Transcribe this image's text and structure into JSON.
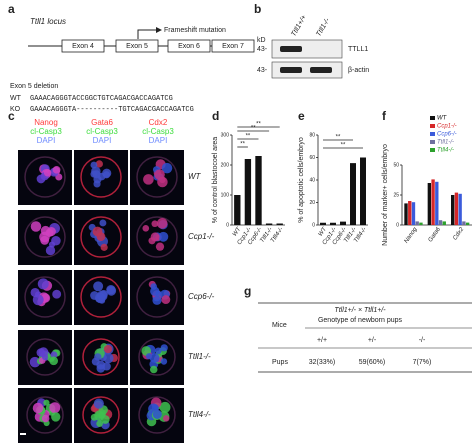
{
  "panels": {
    "a": {
      "label": "a",
      "locus": "Ttll1 locus",
      "exons": [
        "Exon 4",
        "Exon 5",
        "Exon 6",
        "Exon 7"
      ],
      "mutation": "Frameshift mutation",
      "deletion": "Exon 5 deletion",
      "rows": [
        [
          "WT",
          "GAAACAGGGTACCGGCTGTCAGACGACCAGATCG"
        ],
        [
          "KO",
          "GAAACAGGGTA----------TGTCAGACGACCAGATCG"
        ]
      ]
    },
    "b": {
      "label": "b",
      "lanes": [
        "Ttll1+/+",
        "Ttll1-/-"
      ],
      "unit": "kD",
      "markers": [
        "43-",
        "43-"
      ],
      "proteins": [
        "TTLL1",
        "β-actin"
      ]
    },
    "c": {
      "label": "c",
      "columns": [
        [
          "Nanog",
          "cl-Casp3",
          "DAPI"
        ],
        [
          "Gata6",
          "cl-Casp3",
          "DAPI"
        ],
        [
          "Cdx2",
          "cl-Casp3",
          "DAPI"
        ]
      ],
      "rows": [
        "WT",
        "Ccp1-/-",
        "Ccp6-/-",
        "Ttll1-/-",
        "Ttll4-/-"
      ]
    },
    "d": {
      "type": "bar",
      "label": "d",
      "ylabel": "% of control blastocoel area",
      "categories": [
        "WT",
        "Ccp1-/-",
        "Ccp6-/-",
        "Ttll1-/-",
        "Ttll4-/-"
      ],
      "values": [
        100,
        220,
        230,
        5,
        5
      ],
      "color": "#111111",
      "ylim": [
        0,
        300
      ],
      "yticks": [
        0,
        100,
        200,
        300
      ],
      "annotations": [
        "**",
        "**",
        "**",
        "**"
      ]
    },
    "e": {
      "type": "bar",
      "label": "e",
      "ylabel": "% of apoptotic cells/embryo",
      "categories": [
        "WT",
        "Ccp1-/-",
        "Ccp6-/-",
        "Ttll1-/-",
        "Ttll4-/-"
      ],
      "values": [
        2,
        2,
        3,
        55,
        60
      ],
      "color": "#111111",
      "ylim": [
        0,
        80
      ],
      "yticks": [
        0,
        20,
        40,
        60,
        80
      ],
      "annotations": [
        "**",
        "**"
      ]
    },
    "f": {
      "type": "grouped-bar",
      "label": "f",
      "ylabel": "Number of marker+ cells/embryo",
      "categories": [
        "Nanog",
        "Gata6",
        "Cdx2"
      ],
      "ylim": [
        0,
        50
      ],
      "yticks": [
        0,
        25,
        50
      ],
      "series": [
        {
          "name": "WT",
          "color": "#111111",
          "values": [
            18,
            35,
            25
          ]
        },
        {
          "name": "Ccp1-/-",
          "color": "#d62728",
          "values": [
            20,
            38,
            27
          ]
        },
        {
          "name": "Ccp6-/-",
          "color": "#3b5bdb",
          "values": [
            19,
            36,
            26
          ]
        },
        {
          "name": "Ttll1-/-",
          "color": "#6f6f9f",
          "values": [
            3,
            4,
            3
          ]
        },
        {
          "name": "Ttll4-/-",
          "color": "#2ca02c",
          "values": [
            2,
            3,
            2
          ]
        }
      ]
    },
    "g": {
      "label": "g",
      "cross": "Ttll1+/- × Ttll1+/-",
      "subtitle": "Genotype of newborn pups",
      "rowhead": "Mice",
      "genotypes": [
        "+/+",
        "+/-",
        "-/-"
      ],
      "rowname": "Pups",
      "cells": [
        "32(33%)",
        "59(60%)",
        "7(7%)"
      ]
    }
  }
}
